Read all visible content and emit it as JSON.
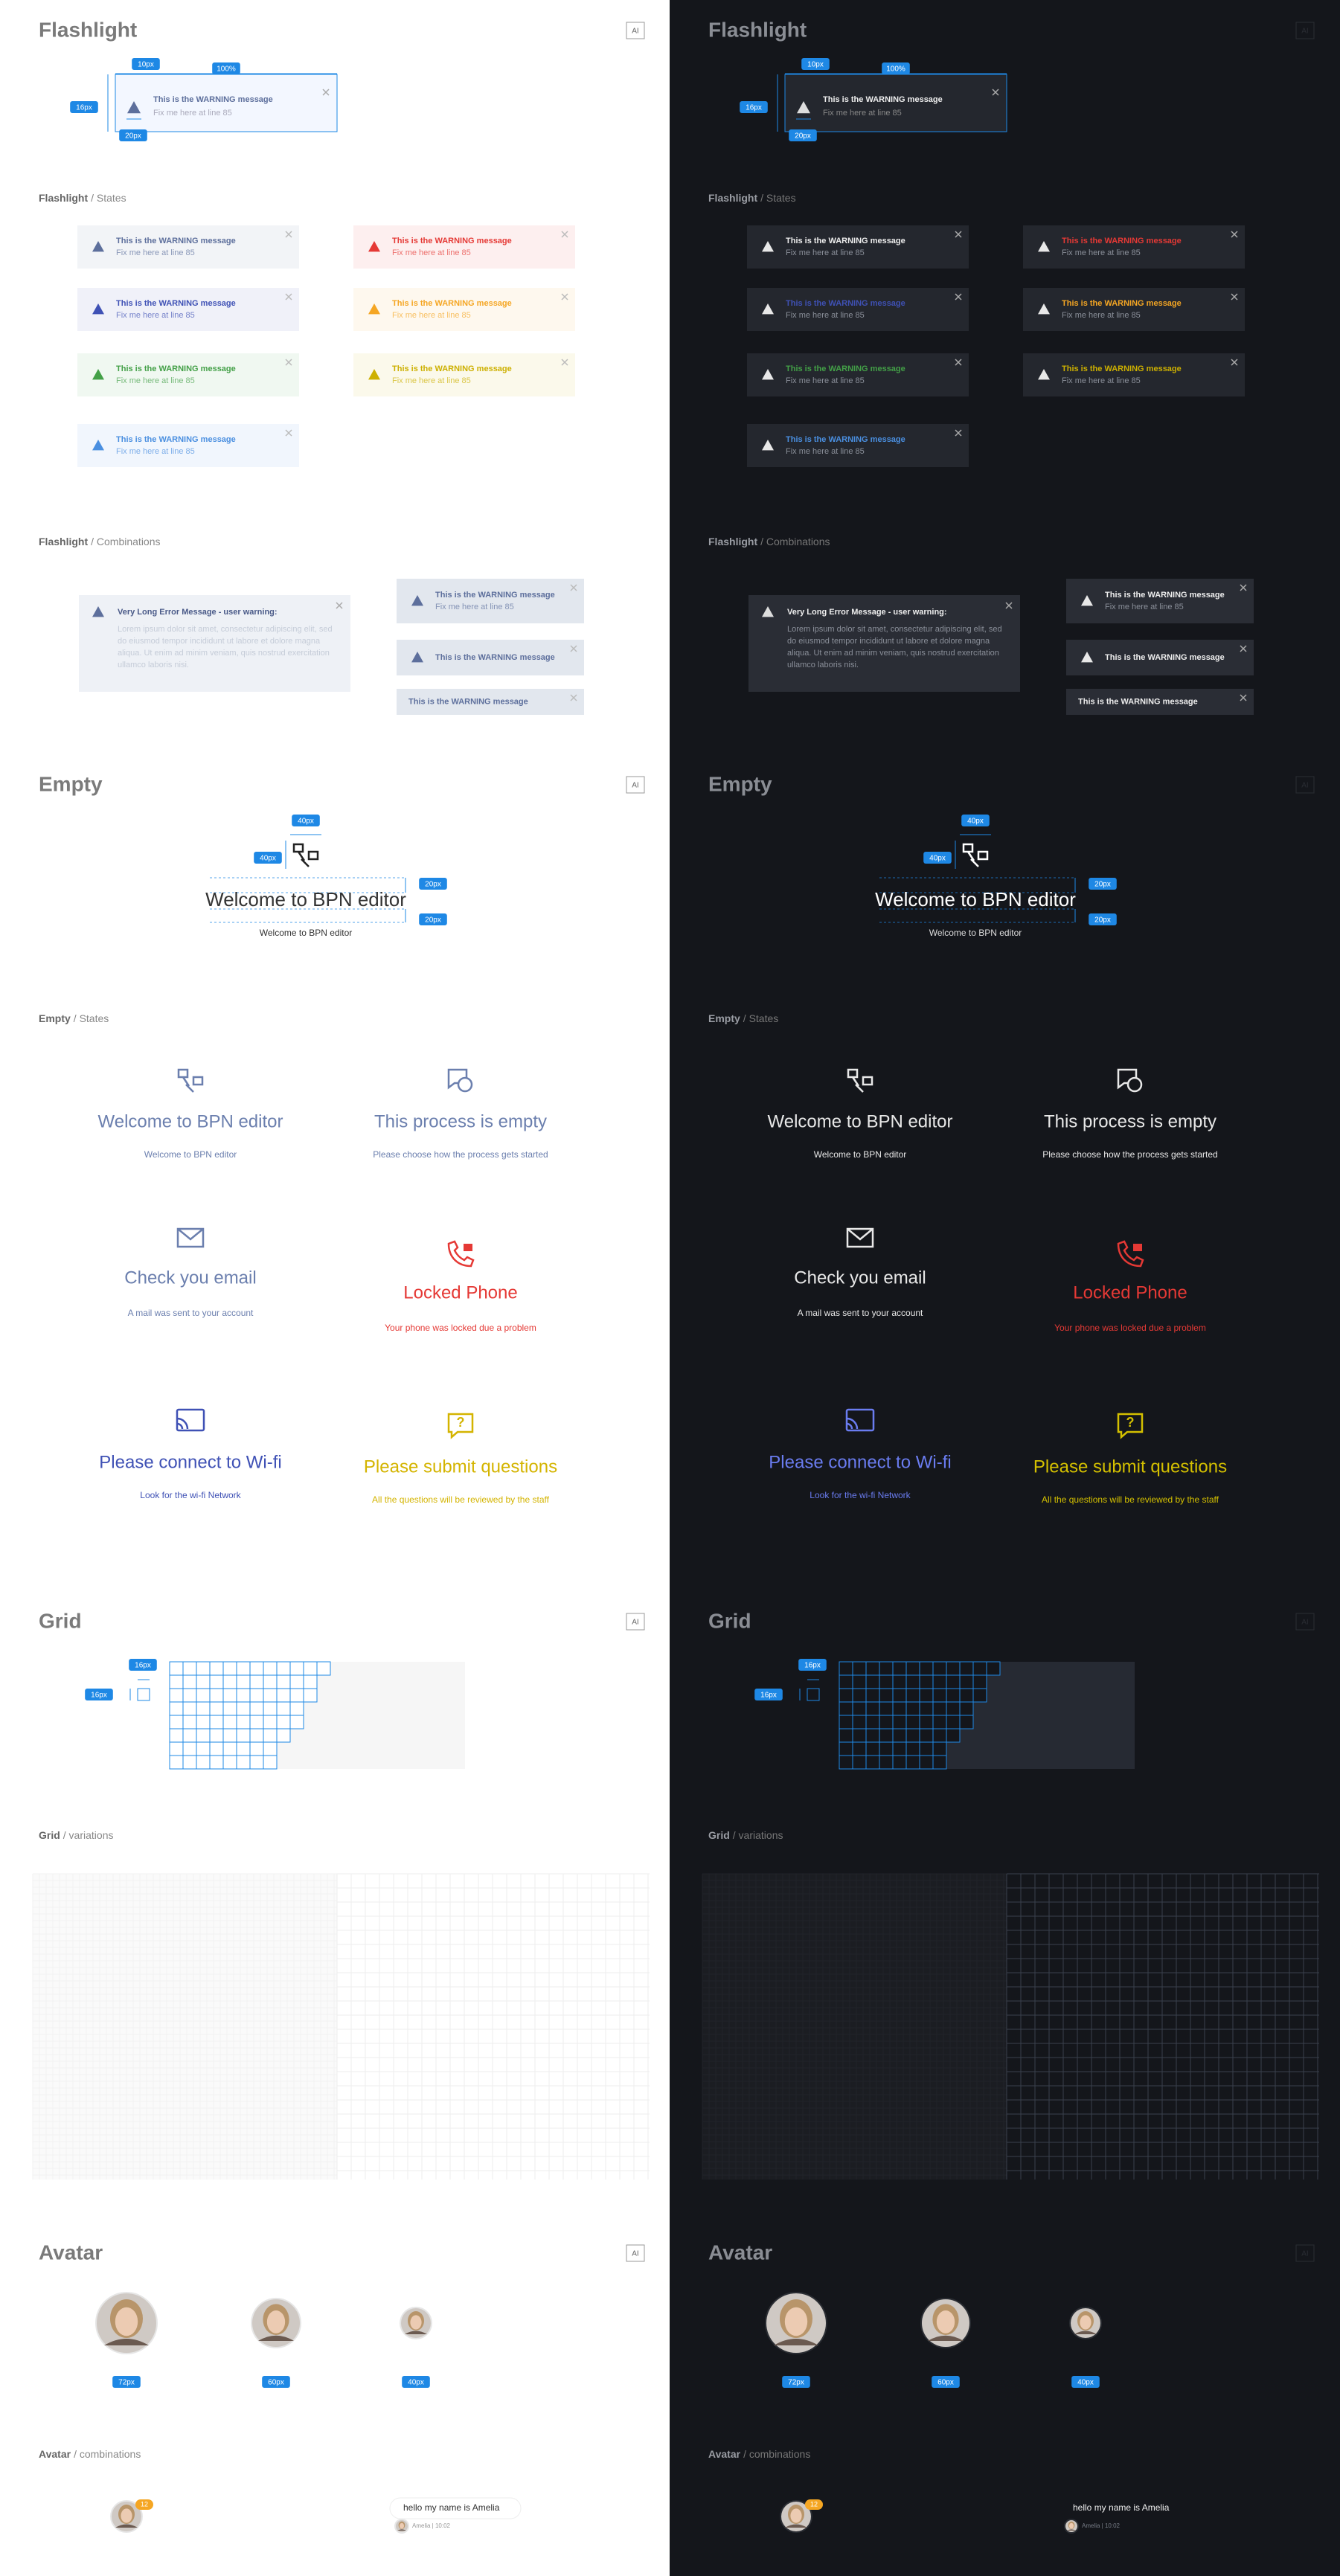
{
  "sections": {
    "flashlight": "Flashlight",
    "empty": "Empty",
    "grid": "Grid",
    "avatar": "Avatar"
  },
  "badge": "AI",
  "subsections": [
    {
      "name": "Flashlight",
      "label": "/ States"
    },
    {
      "name": "Flashlight",
      "label": "/ Combinations"
    },
    {
      "name": "Empty",
      "label": "/ States"
    },
    {
      "name": "Grid",
      "label": "/ variations"
    },
    {
      "name": "Avatar",
      "label": "/ combinations"
    }
  ],
  "flashlight": {
    "message": "This is the WARNING message",
    "detail": "Fix me here at line 85",
    "spec": [
      "10px",
      "100%",
      "16px",
      "20px"
    ],
    "states": [
      {
        "color": "#5d6f9c"
      },
      {
        "color": "#3f51b5"
      },
      {
        "color": "#43a047"
      },
      {
        "color": "#4a8fe0"
      },
      {
        "color": "#e53935"
      },
      {
        "color": "#f5a623"
      },
      {
        "color": "#cdb000"
      }
    ]
  },
  "combinations": {
    "title": "Very Long Error Message - user warning:",
    "body": "Lorem ipsum dolor sit amet, consectetur adipiscing elit, sed do eiusmod tempor incididunt ut labore et dolore magna aliqua. Ut enim ad minim veniam, quis nostrud exercitation ullamco laboris nisi."
  },
  "empty": {
    "spec_title": "Welcome to BPN editor",
    "spec_subtitle": "Welcome to BPN editor",
    "spec": [
      "40px",
      "40px",
      "20px",
      "20px"
    ],
    "states": [
      {
        "title": "Welcome to BPN editor",
        "subtitle": "Welcome to BPN editor",
        "color": "#6b7fae",
        "dark_color": "#e8e8e8"
      },
      {
        "title": "This process is empty",
        "subtitle": "Please choose how the process gets started",
        "color": "#6b7fae",
        "dark_color": "#e8e8e8"
      },
      {
        "title": "Check you email",
        "subtitle": "A mail was sent to your account",
        "color": "#6b7fae",
        "dark_color": "#e8e8e8"
      },
      {
        "title": "Locked Phone",
        "subtitle": "Your phone was locked due a problem",
        "color": "#e53935",
        "dark_color": "#e53935"
      },
      {
        "title": "Please connect to Wi-fi",
        "subtitle": "Look for the wi-fi Network",
        "color": "#3f51b5",
        "dark_color": "#6a7cf0"
      },
      {
        "title": "Please submit questions",
        "subtitle": "All the questions will be reviewed by the staff",
        "color": "#d4b400",
        "dark_color": "#d4c000"
      }
    ]
  },
  "grid": {
    "spec": [
      "16px",
      "16px"
    ]
  },
  "avatar": {
    "sizes": [
      "72px",
      "60px",
      "40px"
    ],
    "badge": "12",
    "message": "hello my name is Amelia",
    "meta": "Amelia | 10:02"
  }
}
